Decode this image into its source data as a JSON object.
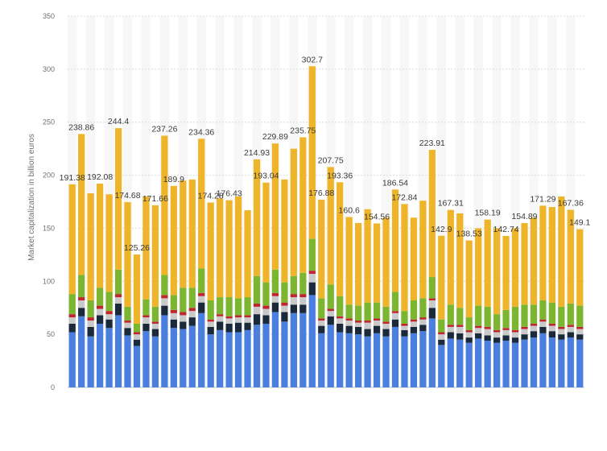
{
  "chart_data": {
    "type": "bar",
    "stacked": true,
    "ylabel": "Market capitalization in billion euros",
    "xlabel": "",
    "ylim": [
      0,
      350
    ],
    "yticks": [
      0,
      50,
      100,
      150,
      200,
      250,
      300,
      350
    ],
    "grid": true,
    "totals": [
      191.38,
      238.86,
      183,
      192.08,
      182,
      244.4,
      174.68,
      125.26,
      180,
      171.66,
      237.26,
      189.9,
      195,
      196,
      234.36,
      174.28,
      178,
      176.43,
      180,
      167,
      214.93,
      193.04,
      229.89,
      196,
      225,
      235.75,
      302.7,
      176.88,
      207.75,
      193.36,
      160.6,
      155,
      168,
      154.56,
      160,
      186.54,
      172.84,
      160,
      176,
      223.91,
      142.9,
      167.31,
      164,
      138.53,
      150,
      158.19,
      150,
      142.74,
      150,
      154.89,
      160,
      171.29,
      170,
      180,
      167.36,
      149.1
    ],
    "data_labels": [
      {
        "index": 0,
        "text": "191.38"
      },
      {
        "index": 1,
        "text": "238.86"
      },
      {
        "index": 3,
        "text": "192.08"
      },
      {
        "index": 5,
        "text": "244.4"
      },
      {
        "index": 6,
        "text": "174.68"
      },
      {
        "index": 7,
        "text": "125.26"
      },
      {
        "index": 9,
        "text": "171.66"
      },
      {
        "index": 10,
        "text": "237.26"
      },
      {
        "index": 11,
        "text": "189.9"
      },
      {
        "index": 14,
        "text": "234.36"
      },
      {
        "index": 15,
        "text": "174.28"
      },
      {
        "index": 17,
        "text": "176.43"
      },
      {
        "index": 20,
        "text": "214.93"
      },
      {
        "index": 21,
        "text": "193.04"
      },
      {
        "index": 22,
        "text": "229.89"
      },
      {
        "index": 25,
        "text": "235.75"
      },
      {
        "index": 26,
        "text": "302.7"
      },
      {
        "index": 27,
        "text": "176.88"
      },
      {
        "index": 28,
        "text": "207.75"
      },
      {
        "index": 29,
        "text": "193.36"
      },
      {
        "index": 30,
        "text": "160.6"
      },
      {
        "index": 33,
        "text": "154.56"
      },
      {
        "index": 35,
        "text": "186.54"
      },
      {
        "index": 36,
        "text": "172.84"
      },
      {
        "index": 39,
        "text": "223.91"
      },
      {
        "index": 40,
        "text": "142.9"
      },
      {
        "index": 41,
        "text": "167.31"
      },
      {
        "index": 43,
        "text": "138.53"
      },
      {
        "index": 45,
        "text": "158.19"
      },
      {
        "index": 47,
        "text": "142.74"
      },
      {
        "index": 49,
        "text": "154.89"
      },
      {
        "index": 51,
        "text": "171.29"
      },
      {
        "index": 54,
        "text": "167.36"
      },
      {
        "index": 55,
        "text": "149.1"
      }
    ],
    "series": [
      {
        "color": "#4a7fe0",
        "values": [
          52,
          67,
          48,
          60,
          56,
          68,
          49,
          39,
          53,
          48,
          68,
          56,
          55,
          58,
          70,
          50,
          54,
          52,
          52,
          54,
          59,
          60,
          71,
          62,
          70,
          70,
          87,
          51,
          59,
          52,
          51,
          50,
          48,
          51,
          48,
          57,
          48,
          51,
          53,
          65,
          40,
          46,
          45,
          42,
          46,
          44,
          42,
          44,
          42,
          45,
          47,
          51,
          47,
          45,
          47,
          45
        ]
      },
      {
        "color": "#1b2a3a",
        "values": [
          8,
          8,
          9,
          8,
          8,
          11,
          7,
          6,
          7,
          7,
          9,
          8,
          7,
          8,
          10,
          7,
          8,
          8,
          9,
          7,
          10,
          8,
          9,
          9,
          8,
          8,
          12,
          7,
          8,
          8,
          7,
          7,
          7,
          7,
          7,
          7,
          6,
          6,
          6,
          10,
          5,
          6,
          6,
          5,
          5,
          5,
          5,
          5,
          5,
          5,
          6,
          6,
          6,
          5,
          5,
          5
        ]
      },
      {
        "color": "#c9c9c9",
        "values": [
          6,
          7,
          6,
          6,
          5,
          6,
          5,
          5,
          6,
          5,
          7,
          6,
          6,
          6,
          6,
          5,
          5,
          5,
          5,
          5,
          7,
          6,
          6,
          6,
          7,
          7,
          8,
          5,
          5,
          5,
          5,
          4,
          6,
          5,
          5,
          6,
          4,
          5,
          5,
          7,
          5,
          5,
          6,
          5,
          5,
          6,
          5,
          5,
          5,
          5,
          5,
          5,
          5,
          5,
          5,
          5
        ]
      },
      {
        "color": "#c0262f",
        "values": [
          3,
          3,
          3,
          3,
          3,
          3,
          2,
          2,
          2,
          2,
          3,
          3,
          3,
          3,
          3,
          2,
          2,
          2,
          2,
          2,
          3,
          3,
          3,
          3,
          3,
          3,
          3,
          2,
          2,
          2,
          2,
          2,
          2,
          2,
          2,
          2,
          2,
          2,
          2,
          2,
          2,
          2,
          2,
          2,
          2,
          2,
          2,
          2,
          2,
          2,
          2,
          2,
          2,
          2,
          2,
          2
        ]
      },
      {
        "color": "#7cb631",
        "values": [
          19,
          21,
          16,
          17,
          18,
          23,
          13,
          8,
          15,
          14,
          19,
          14,
          23,
          19,
          23,
          18,
          16,
          18,
          16,
          17,
          26,
          22,
          22,
          19,
          17,
          20,
          30,
          19,
          23,
          19,
          13,
          14,
          17,
          15,
          14,
          18,
          12,
          18,
          18,
          20,
          12,
          19,
          16,
          12,
          19,
          19,
          15,
          17,
          22,
          21,
          18,
          18,
          20,
          19,
          20,
          20
        ]
      },
      {
        "color": "#efb52a",
        "values": [
          103.38,
          132.86,
          101,
          98.08,
          92,
          133.4,
          98.68,
          65.26,
          97,
          95.66,
          131.26,
          102.9,
          101,
          102,
          122.36,
          92.28,
          93,
          91.43,
          96,
          82,
          109.93,
          94.04,
          118.89,
          97,
          120,
          127.75,
          162.7,
          92.88,
          110.75,
          107.36,
          82.6,
          78,
          88,
          74.56,
          84,
          96.54,
          100.84,
          78,
          92,
          119.91,
          78.9,
          89.31,
          89,
          72.53,
          73,
          82.19,
          81,
          69.74,
          74,
          76.89,
          82,
          89.29,
          90,
          104,
          88.36,
          72.1
        ]
      }
    ]
  }
}
